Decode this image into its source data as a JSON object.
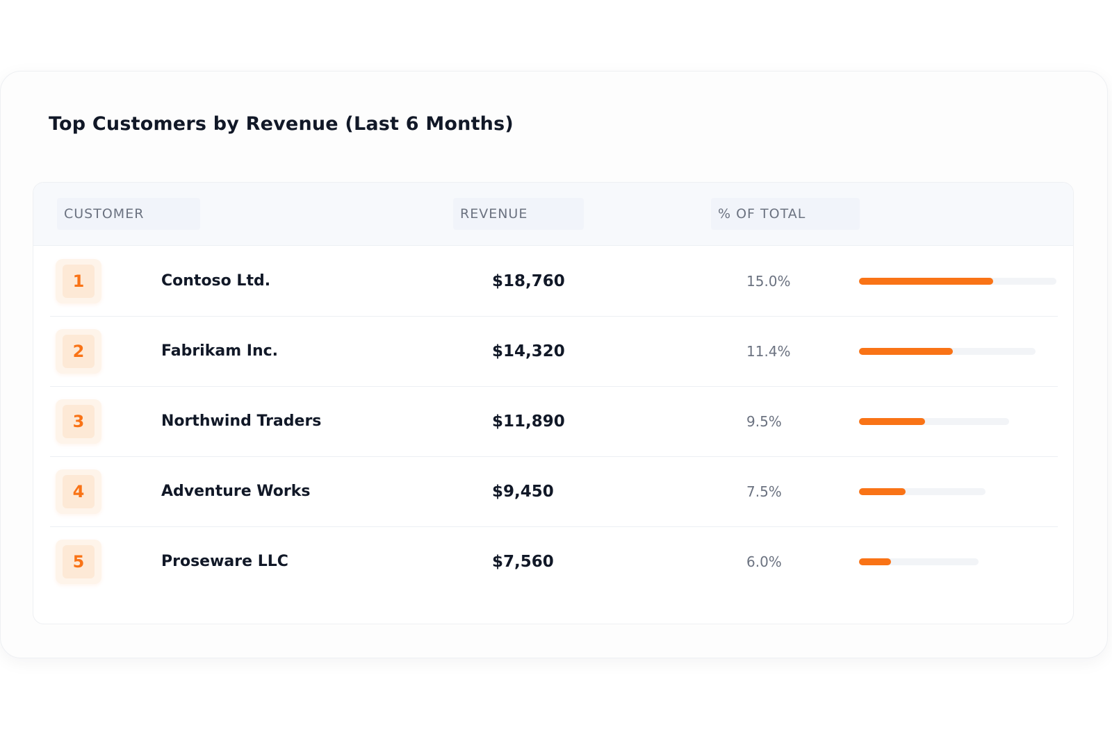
{
  "title": "Top Customers by Revenue (Last 6 Months)",
  "columns": {
    "customer": "CUSTOMER",
    "revenue": "REVENUE",
    "percent": "% OF TOTAL"
  },
  "colors": {
    "accent": "#f97316",
    "rank_bg": "#fde9d6",
    "bar_track": "#f2f4f7"
  },
  "rows": [
    {
      "rank": "1",
      "name": "Contoso Ltd.",
      "revenue": "$18,760",
      "percent": "15.0%",
      "bar_fill": 0.68
    },
    {
      "rank": "2",
      "name": "Fabrikam Inc.",
      "revenue": "$14,320",
      "percent": "11.4%",
      "bar_fill": 0.53
    },
    {
      "rank": "3",
      "name": "Northwind Traders",
      "revenue": "$11,890",
      "percent": "9.5%",
      "bar_fill": 0.44
    },
    {
      "rank": "4",
      "name": "Adventure Works",
      "revenue": "$9,450",
      "percent": "7.5%",
      "bar_fill": 0.37
    },
    {
      "rank": "5",
      "name": "Proseware LLC",
      "revenue": "$7,560",
      "percent": "6.0%",
      "bar_fill": 0.27
    }
  ]
}
